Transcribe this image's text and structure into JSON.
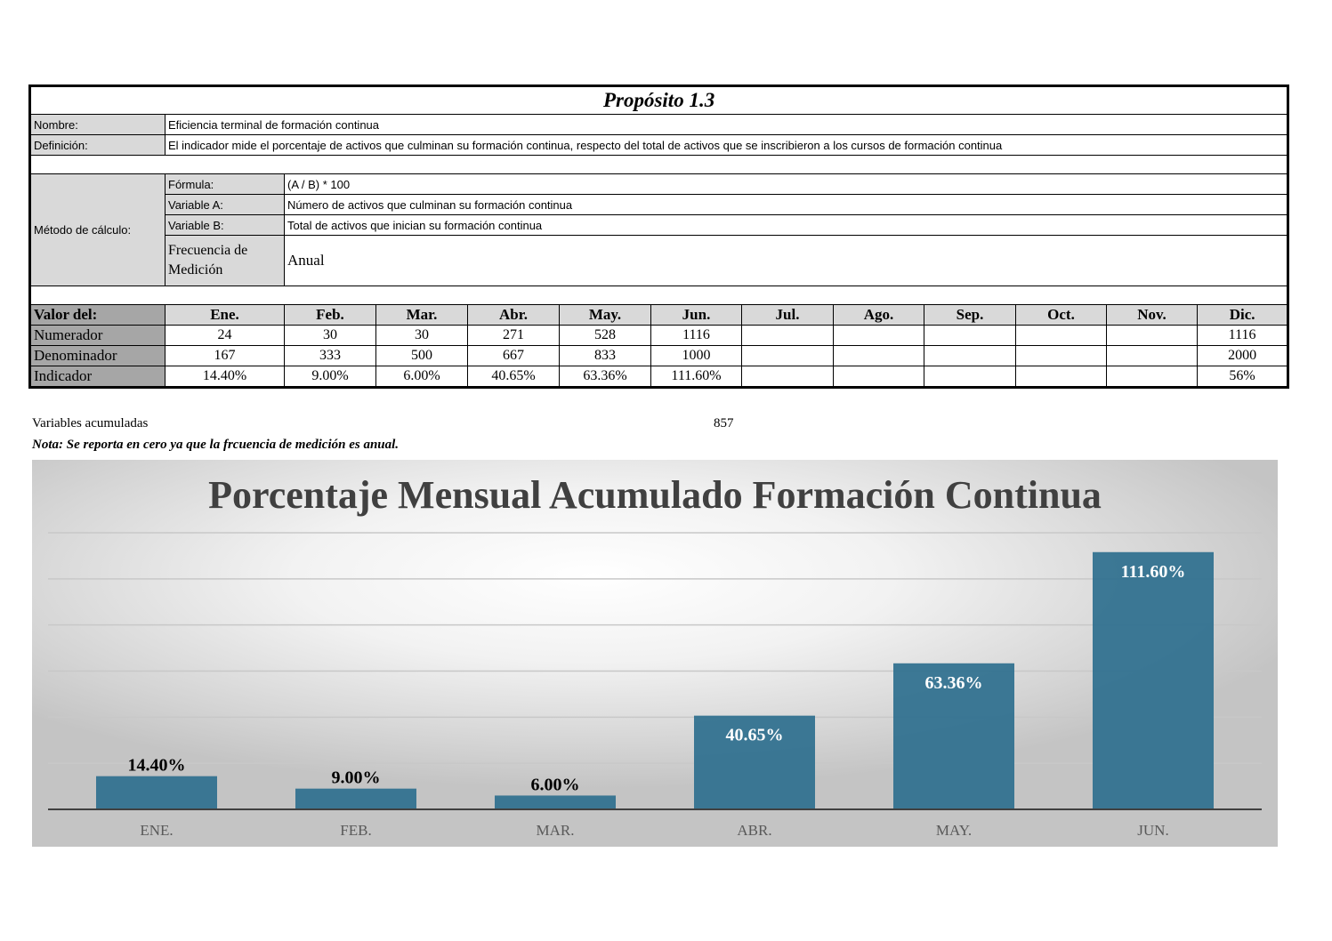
{
  "sheet": {
    "title": "Propósito 1.3",
    "nombre_label": "Nombre:",
    "nombre_value": "Eficiencia terminal de formación continua",
    "definicion_label": "Definición:",
    "definicion_value": "El indicador mide el porcentaje de activos que culminan su formación continua, respecto del total de activos que se inscribieron a los cursos de formación continua",
    "metodo_label": "Método de cálculo:",
    "formula_label": "Fórmula:",
    "formula_value": "(A / B) * 100",
    "var_a_label": "Variable A:",
    "var_a_value": "Número de activos que culminan su formación continua",
    "var_b_label": "Variable B:",
    "var_b_value": "Total de activos que inician su formación continua",
    "frecuencia_label": "Frecuencia de Medición",
    "frecuencia_value": "Anual",
    "valor_label": "Valor del:",
    "months": [
      "Ene.",
      "Feb.",
      "Mar.",
      "Abr.",
      "May.",
      "Jun.",
      "Jul.",
      "Ago.",
      "Sep.",
      "Oct.",
      "Nov.",
      "Dic."
    ],
    "rows": [
      {
        "label": "Numerador",
        "values": [
          "24",
          "30",
          "30",
          "271",
          "528",
          "1116",
          "",
          "",
          "",
          "",
          "",
          "1116"
        ]
      },
      {
        "label": "Denominador",
        "values": [
          "167",
          "333",
          "500",
          "667",
          "833",
          "1000",
          "",
          "",
          "",
          "",
          "",
          "2000"
        ]
      },
      {
        "label": "Indicador",
        "values": [
          "14.40%",
          "9.00%",
          "6.00%",
          "40.65%",
          "63.36%",
          "111.60%",
          "",
          "",
          "",
          "",
          "",
          "56%"
        ]
      }
    ],
    "acumuladas_label": "Variables acumuladas",
    "acumuladas_value": "857",
    "note": "Nota: Se reporta en cero ya que la frcuencia de medición es anual."
  },
  "chart_data": {
    "type": "bar",
    "title": "Porcentaje Mensual Acumulado Formación Continua",
    "categories": [
      "ENE.",
      "FEB.",
      "MAR.",
      "ABR.",
      "MAY.",
      "JUN."
    ],
    "values": [
      14.4,
      9.0,
      6.0,
      40.65,
      63.36,
      111.6
    ],
    "data_labels": [
      "14.40%",
      "9.00%",
      "6.00%",
      "40.65%",
      "63.36%",
      "111.60%"
    ],
    "ylim": [
      0,
      120
    ],
    "grid": true,
    "bar_color": "#2e6f8e",
    "xlabel": "",
    "ylabel": ""
  }
}
